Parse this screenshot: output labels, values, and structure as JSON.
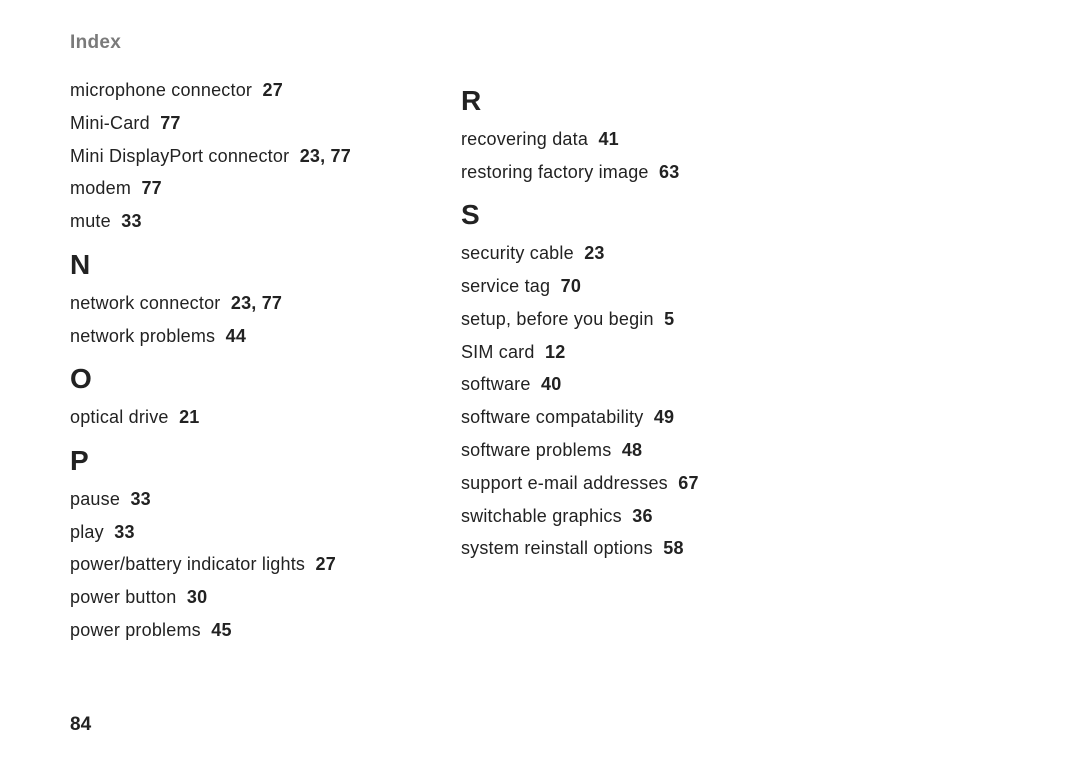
{
  "header": "Index",
  "page_number": "84",
  "columns": [
    {
      "initial_entries": [
        {
          "term": "microphone connector",
          "pages": "27"
        },
        {
          "term": "Mini-Card",
          "pages": "77"
        },
        {
          "term": "Mini DisplayPort connector",
          "pages": "23, 77"
        },
        {
          "term": "modem",
          "pages": "77"
        },
        {
          "term": "mute",
          "pages": "33"
        }
      ],
      "sections": [
        {
          "letter": "N",
          "entries": [
            {
              "term": "network connector",
              "pages": "23, 77"
            },
            {
              "term": "network problems",
              "pages": "44"
            }
          ]
        },
        {
          "letter": "O",
          "entries": [
            {
              "term": "optical drive",
              "pages": "21"
            }
          ]
        },
        {
          "letter": "P",
          "entries": [
            {
              "term": "pause",
              "pages": "33"
            },
            {
              "term": "play",
              "pages": "33"
            },
            {
              "term": "power/battery indicator lights",
              "pages": "27"
            },
            {
              "term": "power button",
              "pages": "30"
            },
            {
              "term": "power problems",
              "pages": "45"
            }
          ]
        }
      ]
    },
    {
      "initial_entries": [],
      "sections": [
        {
          "letter": "R",
          "entries": [
            {
              "term": "recovering data",
              "pages": "41"
            },
            {
              "term": "restoring factory image",
              "pages": "63"
            }
          ]
        },
        {
          "letter": "S",
          "entries": [
            {
              "term": "security cable",
              "pages": "23"
            },
            {
              "term": "service tag",
              "pages": "70"
            },
            {
              "term": "setup, before you begin",
              "pages": "5"
            },
            {
              "term": "SIM card",
              "pages": "12"
            },
            {
              "term": "software",
              "pages": "40"
            },
            {
              "term": "software compatability",
              "pages": "49"
            },
            {
              "term": "software problems",
              "pages": "48"
            },
            {
              "term": "support e-mail addresses",
              "pages": "67"
            },
            {
              "term": "switchable graphics",
              "pages": "36"
            },
            {
              "term": "system reinstall options",
              "pages": "58"
            }
          ]
        }
      ]
    }
  ]
}
